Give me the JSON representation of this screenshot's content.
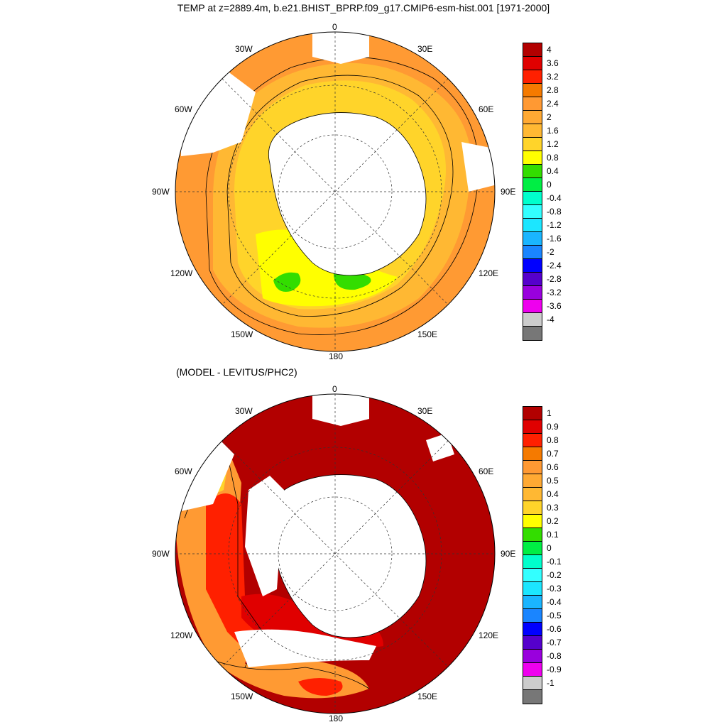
{
  "title": "TEMP at z=2889.4m, b.e21.BHIST_BPRP.f09_g17.CMIP6-esm-hist.001 [1971-2000]",
  "subtitle": "(MODEL - LEVITUS/PHC2)",
  "lon_labels": {
    "n": "0",
    "nw": "30W",
    "ne": "30E",
    "wnw": "60W",
    "ene": "60E",
    "w": "90W",
    "e": "90E",
    "wsw": "120W",
    "ese": "120E",
    "ssw": "150W",
    "sse": "150E",
    "s": "180"
  },
  "colorbar_top": {
    "labels": [
      "4",
      "3.6",
      "3.2",
      "2.8",
      "2.4",
      "2",
      "1.6",
      "1.2",
      "0.8",
      "0.4",
      "0",
      "-0.4",
      "-0.8",
      "-1.2",
      "-1.6",
      "-2",
      "-2.4",
      "-2.8",
      "-3.2",
      "-3.6",
      "-4"
    ],
    "colors": [
      "#b20000",
      "#e00000",
      "#ff2000",
      "#f57a00",
      "#ff9933",
      "#ffa933",
      "#ffb833",
      "#ffd42a",
      "#ffff00",
      "#33dd00",
      "#00ee44",
      "#00ffcc",
      "#33ffff",
      "#1ce6ff",
      "#1ab5ff",
      "#1a85ff",
      "#0000ff",
      "#5500cc",
      "#9900dd",
      "#ee00ee",
      "#cccccc",
      "#777777"
    ]
  },
  "colorbar_bottom": {
    "labels": [
      "1",
      "0.9",
      "0.8",
      "0.7",
      "0.6",
      "0.5",
      "0.4",
      "0.3",
      "0.2",
      "0.1",
      "0",
      "-0.1",
      "-0.2",
      "-0.3",
      "-0.4",
      "-0.5",
      "-0.6",
      "-0.7",
      "-0.8",
      "-0.9",
      "-1"
    ],
    "colors": [
      "#b20000",
      "#e00000",
      "#ff2000",
      "#f57a00",
      "#ff9933",
      "#ffa933",
      "#ffb833",
      "#ffd42a",
      "#ffff00",
      "#33dd00",
      "#00ee44",
      "#00ffcc",
      "#33ffff",
      "#1ce6ff",
      "#1ab5ff",
      "#1a85ff",
      "#0000ff",
      "#5500cc",
      "#9900dd",
      "#ee00ee",
      "#cccccc",
      "#777777"
    ]
  }
}
